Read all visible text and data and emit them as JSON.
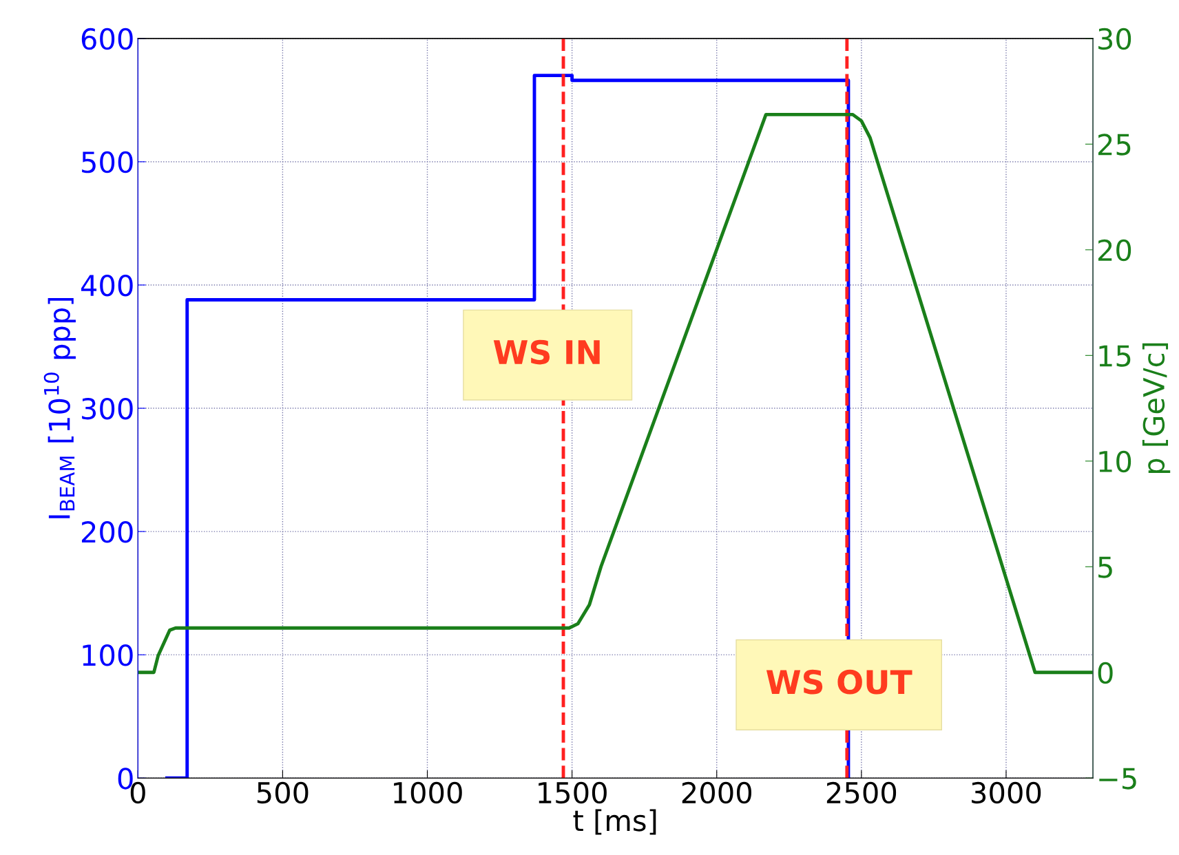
{
  "chart_data": {
    "type": "line",
    "xlabel": "t [ms]",
    "ylabel": "I$_{BEAM}$ [10$^{10}$ ppp]",
    "y2label": "p [GeV/c]",
    "xlim": [
      0,
      3300
    ],
    "xticks": [
      0,
      500,
      1000,
      1500,
      2000,
      2500,
      3000
    ],
    "ylim": [
      0,
      600
    ],
    "yticks": [
      0,
      100,
      200,
      300,
      400,
      500,
      600
    ],
    "y2lim": [
      -5,
      30
    ],
    "y2ticks": [
      {
        "value": -5,
        "label": "−5"
      },
      0,
      5,
      10,
      15,
      20,
      25,
      30
    ],
    "grid": true,
    "line_style": "solid",
    "marker": "none",
    "series": [
      {
        "color": "#0000ff",
        "x": [
          100,
          170,
          170,
          1370,
          1370,
          1500,
          1500,
          2455,
          2455
        ],
        "values": [
          0,
          0,
          388,
          388,
          570,
          570,
          566,
          566,
          0
        ]
      },
      {
        "color": "#1a7f1a",
        "axis": "y2",
        "x": [
          0,
          55,
          70,
          110,
          130,
          1490,
          1520,
          1560,
          1600,
          2170,
          2470,
          2500,
          2530,
          3100,
          3300
        ],
        "values": [
          0,
          0,
          0.8,
          2.0,
          2.1,
          2.1,
          2.3,
          3.2,
          5,
          26.4,
          26.4,
          26.1,
          25.3,
          0,
          0
        ]
      }
    ],
    "ref_lines": [
      {
        "axis": "x",
        "value": 1470,
        "color": "#ff2020",
        "line_style": "dashed"
      },
      {
        "axis": "x",
        "value": 2450,
        "color": "#ff2020",
        "line_style": "dashed"
      }
    ],
    "annotations": [
      "WS IN",
      "WS OUT"
    ]
  }
}
